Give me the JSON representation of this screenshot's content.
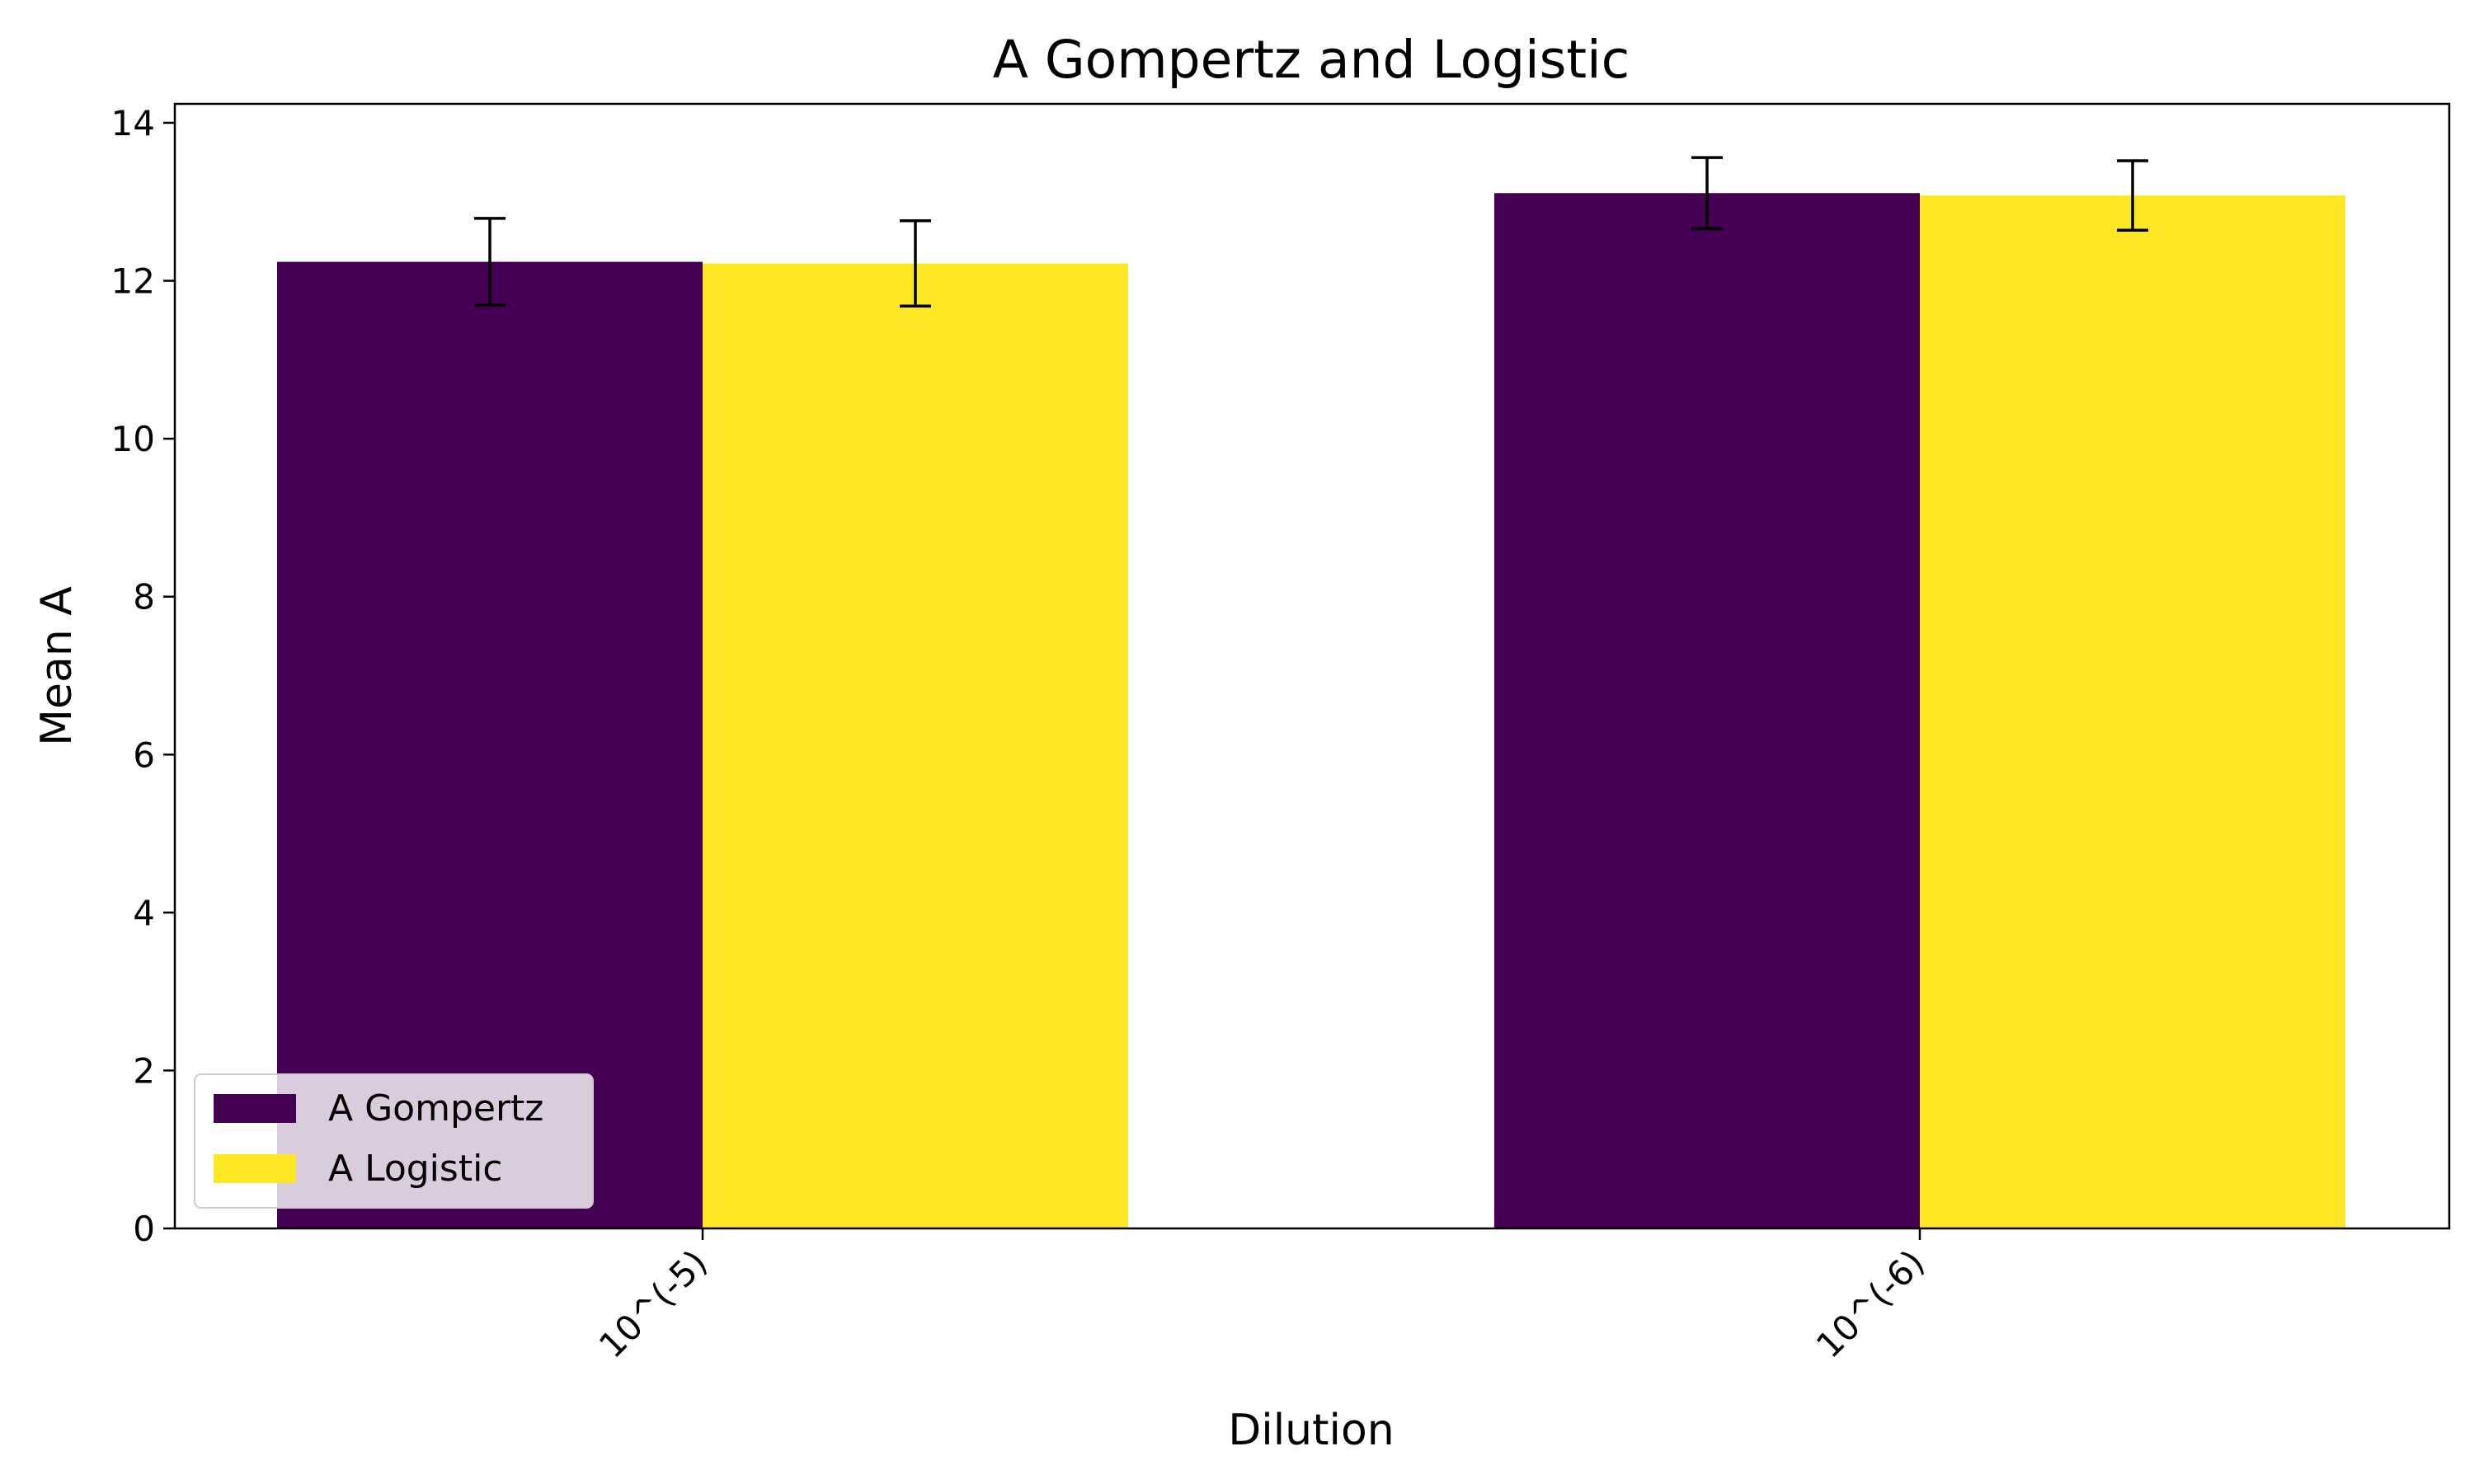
{
  "chart_data": {
    "type": "bar",
    "title": "A Gompertz and Logistic",
    "xlabel": "Dilution",
    "ylabel": "Mean A",
    "categories": [
      "10^(-5)",
      "10^(-6)"
    ],
    "ylim": [
      0,
      14.24
    ],
    "yticks": [
      0,
      2,
      4,
      6,
      8,
      10,
      12,
      14
    ],
    "grid": false,
    "legend_position": "lower-left",
    "series": [
      {
        "name": "A Gompertz",
        "color": "#440154",
        "values": [
          12.24,
          13.11
        ],
        "errors": [
          0.55,
          0.45
        ]
      },
      {
        "name": "A Logistic",
        "color": "#fde725",
        "values": [
          12.22,
          13.08
        ],
        "errors": [
          0.54,
          0.44
        ]
      }
    ]
  }
}
